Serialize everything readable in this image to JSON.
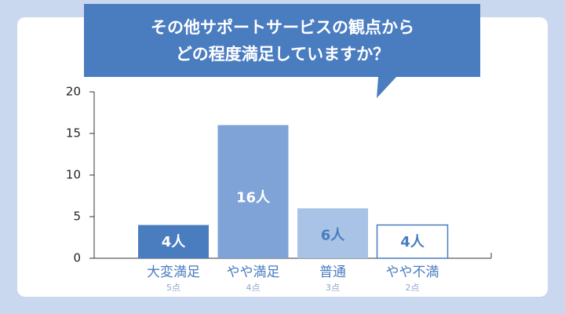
{
  "chart_data": {
    "type": "bar",
    "title": [
      "その他サポートサービスの観点から",
      "どの程度満足していますか？"
    ],
    "categories": [
      "大変満足",
      "やや満足",
      "普通",
      "やや不満"
    ],
    "category_sublabels": [
      "5点",
      "4点",
      "3点",
      "2点"
    ],
    "values": [
      4,
      16,
      6,
      4
    ],
    "value_labels": [
      "4人",
      "16人",
      "6人",
      "4人"
    ],
    "colors": [
      "#4a7cc0",
      "#7fa3d6",
      "#a8c3e6",
      "#ffffff"
    ],
    "edge_color": "#4a7cc0",
    "value_label_colors": [
      "#ffffff",
      "#ffffff",
      "#4a7cc0",
      "#4a7cc0"
    ],
    "ylim": [
      0,
      20
    ],
    "yticks": [
      0,
      5,
      10,
      15,
      20
    ],
    "grid": false
  }
}
